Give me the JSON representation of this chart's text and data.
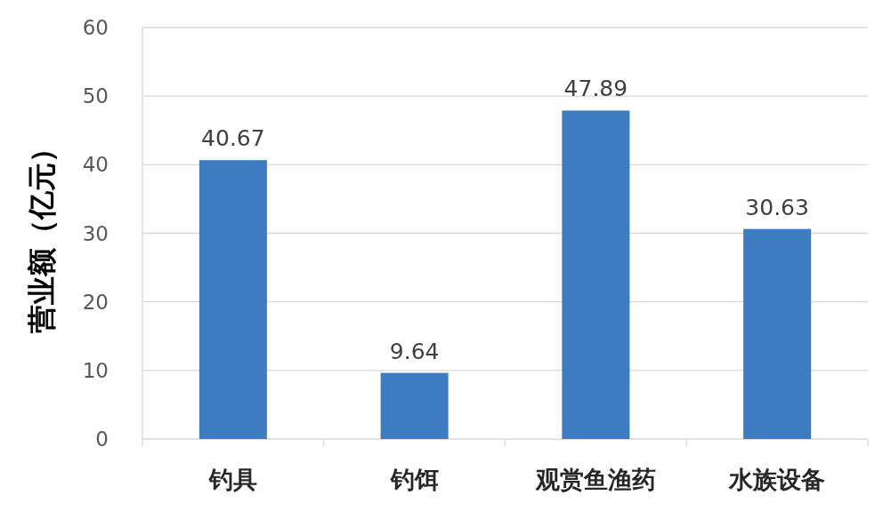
{
  "chart_data": {
    "type": "bar",
    "ylabel": "营业额（亿元）",
    "categories": [
      "钓具",
      "钓饵",
      "观赏鱼渔药",
      "水族设备"
    ],
    "values": [
      40.67,
      9.64,
      47.89,
      30.63
    ],
    "color": "#3e7cc1",
    "ylim": [
      0,
      60
    ],
    "yticks": [
      0,
      10,
      20,
      30,
      40,
      50,
      60
    ],
    "grid": "y",
    "data_labels": true
  }
}
